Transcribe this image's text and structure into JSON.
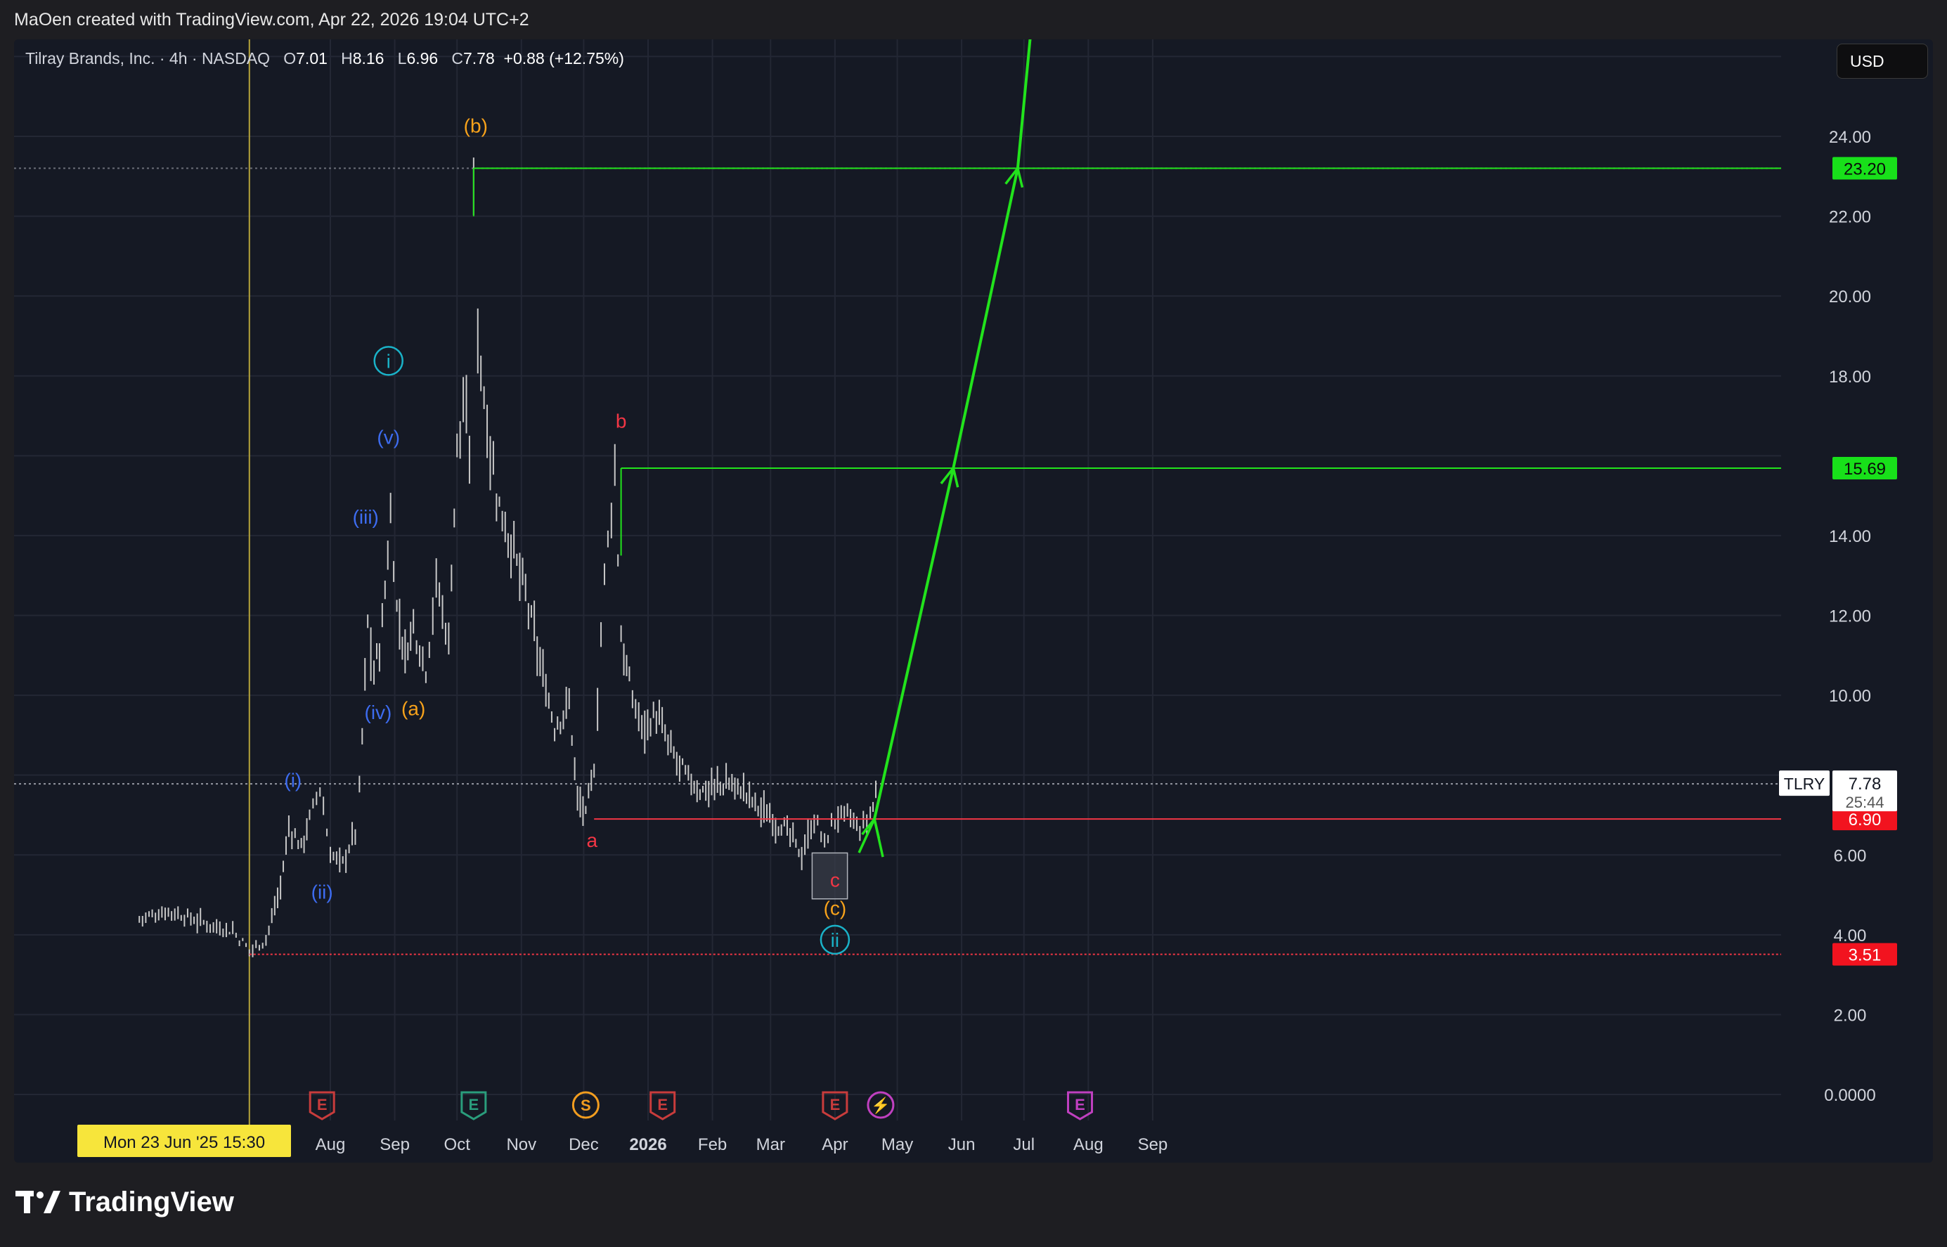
{
  "header": {
    "attribution": "MaOen created with TradingView.com, Apr 22, 2026 19:04 UTC+2"
  },
  "legend": {
    "symbol": "Tilray Brands, Inc. · 4h · NASDAQ",
    "open_label": "O",
    "open": "7.01",
    "high_label": "H",
    "high": "8.16",
    "low_label": "L",
    "low": "6.96",
    "close_label": "C",
    "close": "7.78",
    "change": "+0.88 (+12.75%)"
  },
  "currency_button": "USD",
  "footer": {
    "brand": "TradingView"
  },
  "colors": {
    "background": "#151924",
    "candles": "#c8c8c8",
    "projection": "#22e31c",
    "support_line": "#f23645",
    "wave_blue": "#3d6cf0",
    "wave_orange": "#f7a21b",
    "wave_red": "#f23645",
    "wave_cyan": "#1ab2c8",
    "crosshair": "#b5a33a",
    "earnings_red": "#c83c3c",
    "earnings_green": "#2a9d7c",
    "split": "#f29d1f",
    "upcoming": "#c040c0"
  },
  "chart_data": {
    "type": "line",
    "symbol": "TLRY",
    "timeframe": "4h",
    "title": "Tilray Brands, Inc. · 4h · NASDAQ",
    "y_scale": "linear",
    "ylim": [
      -0.3,
      26.8
    ],
    "x_tick_labels": [
      "Aug",
      "Sep",
      "Oct",
      "Nov",
      "Dec",
      "2026",
      "Feb",
      "Mar",
      "Apr",
      "May",
      "Jun",
      "Jul",
      "Aug",
      "Sep"
    ],
    "x_tick_dates": [
      "2025-08-01",
      "2025-09-01",
      "2025-10-01",
      "2025-11-01",
      "2025-12-01",
      "2026-01-01",
      "2026-02-01",
      "2026-03-01",
      "2026-04-01",
      "2026-05-01",
      "2026-06-01",
      "2026-07-01",
      "2026-08-01",
      "2026-09-01"
    ],
    "y_tick_labels": [
      "0.0000",
      "2.00",
      "4.00",
      "6.00",
      "10.00",
      "12.00",
      "14.00",
      "18.00",
      "20.00",
      "22.00",
      "24.00"
    ],
    "y_tick_values": [
      0,
      2,
      4,
      6,
      10,
      12,
      14,
      18,
      20,
      22,
      24
    ],
    "grid": true,
    "price_series": {
      "name": "TLRY",
      "x": [
        "2025-05-01",
        "2025-05-15",
        "2025-06-01",
        "2025-06-15",
        "2025-06-23",
        "2025-07-01",
        "2025-07-08",
        "2025-07-12",
        "2025-07-18",
        "2025-07-22",
        "2025-07-27",
        "2025-08-01",
        "2025-08-07",
        "2025-08-13",
        "2025-08-15",
        "2025-08-19",
        "2025-08-22",
        "2025-08-26",
        "2025-08-30",
        "2025-09-02",
        "2025-09-06",
        "2025-09-10",
        "2025-09-16",
        "2025-09-21",
        "2025-09-27",
        "2025-10-01",
        "2025-10-04",
        "2025-10-07",
        "2025-10-09",
        "2025-10-11",
        "2025-10-14",
        "2025-10-20",
        "2025-10-27",
        "2025-11-03",
        "2025-11-10",
        "2025-11-17",
        "2025-11-24",
        "2025-11-28",
        "2025-12-02",
        "2025-12-06",
        "2025-12-11",
        "2025-12-16",
        "2025-12-19",
        "2025-12-23",
        "2025-12-29",
        "2026-01-05",
        "2026-01-12",
        "2026-01-19",
        "2026-01-26",
        "2026-02-02",
        "2026-02-09",
        "2026-02-16",
        "2026-02-23",
        "2026-03-02",
        "2026-03-09",
        "2026-03-16",
        "2026-03-22",
        "2026-03-27",
        "2026-04-01",
        "2026-04-07",
        "2026-04-13",
        "2026-04-18",
        "2026-04-22"
      ],
      "y": [
        4.4,
        4.6,
        4.3,
        4.1,
        3.6,
        3.9,
        5.2,
        6.7,
        6.2,
        6.9,
        7.7,
        6.0,
        5.8,
        6.6,
        7.6,
        11.8,
        10.5,
        11.7,
        14.5,
        12.2,
        11.0,
        11.8,
        10.7,
        12.8,
        11.4,
        16.2,
        17.2,
        16.0,
        22.5,
        19.2,
        17.5,
        15.0,
        13.8,
        12.5,
        10.8,
        9.2,
        9.8,
        7.4,
        7.0,
        8.2,
        13.0,
        15.6,
        11.5,
        10.2,
        9.2,
        9.5,
        8.6,
        8.0,
        7.6,
        7.7,
        7.8,
        7.6,
        7.2,
        6.9,
        6.6,
        6.0,
        6.9,
        6.3,
        6.9,
        7.0,
        6.6,
        7.0,
        7.78
      ]
    },
    "last_price": 7.78,
    "last_price_label": "TLRY",
    "countdown": "25:44",
    "price_levels": [
      {
        "value": 23.2,
        "label": "23.20",
        "color": "#22e31c"
      },
      {
        "value": 15.69,
        "label": "15.69",
        "color": "#22e31c"
      },
      {
        "value": 6.9,
        "label": "6.90",
        "color": "#f23645"
      },
      {
        "value": 3.51,
        "label": "3.51",
        "color": "#f23645"
      }
    ],
    "projection": {
      "x": [
        "2026-04-20",
        "2026-05-28",
        "2026-06-28",
        "2026-07-05"
      ],
      "y": [
        6.9,
        15.69,
        23.2,
        27.0
      ]
    },
    "crosshair": {
      "date": "2025-06-23",
      "label": "Mon 23 Jun '25   15:30"
    },
    "wave_labels": [
      {
        "text": "(i)",
        "x": "2025-07-14",
        "y": 7.7,
        "color": "blue"
      },
      {
        "text": "(ii)",
        "x": "2025-07-28",
        "y": 4.9,
        "color": "blue"
      },
      {
        "text": "(iii)",
        "x": "2025-08-18",
        "y": 14.3,
        "color": "blue"
      },
      {
        "text": "(iv)",
        "x": "2025-08-24",
        "y": 9.4,
        "color": "blue"
      },
      {
        "text": "(v)",
        "x": "2025-08-29",
        "y": 16.3,
        "color": "blue"
      },
      {
        "text": "i",
        "x": "2025-08-29",
        "y": 18.2,
        "color": "cyan",
        "circled": true
      },
      {
        "text": "(a)",
        "x": "2025-09-10",
        "y": 9.5,
        "color": "orange"
      },
      {
        "text": "(b)",
        "x": "2025-10-10",
        "y": 24.1,
        "color": "orange"
      },
      {
        "text": "a",
        "x": "2025-12-05",
        "y": 6.2,
        "color": "red"
      },
      {
        "text": "b",
        "x": "2025-12-19",
        "y": 16.7,
        "color": "red"
      },
      {
        "text": "c",
        "x": "2026-04-01",
        "y": 5.2,
        "color": "red"
      },
      {
        "text": "(c)",
        "x": "2026-04-01",
        "y": 4.5,
        "color": "orange"
      },
      {
        "text": "ii",
        "x": "2026-04-01",
        "y": 3.7,
        "color": "cyan",
        "circled": true
      }
    ],
    "events": [
      {
        "type": "earnings",
        "label": "E",
        "date": "2025-07-28",
        "color": "red"
      },
      {
        "type": "earnings",
        "label": "E",
        "date": "2025-10-09",
        "color": "green"
      },
      {
        "type": "split",
        "label": "S",
        "date": "2025-12-02",
        "color": "orange"
      },
      {
        "type": "earnings",
        "label": "E",
        "date": "2026-01-08",
        "color": "red"
      },
      {
        "type": "earnings",
        "label": "E",
        "date": "2026-04-01",
        "color": "red"
      },
      {
        "type": "upcoming",
        "label": "⚡",
        "date": "2026-04-23",
        "color": "purple"
      },
      {
        "type": "earnings_upcoming",
        "label": "E",
        "date": "2026-07-28",
        "color": "purple"
      }
    ]
  }
}
